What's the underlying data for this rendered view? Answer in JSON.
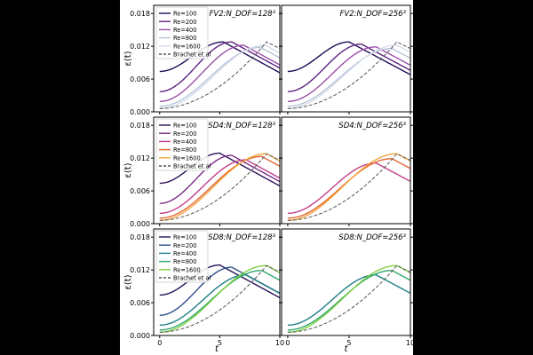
{
  "figure": {
    "xlabel": "t",
    "ylabel": "ε(t)",
    "xticks": [
      0,
      5,
      10
    ],
    "yticks": [
      "0.000",
      "0.006",
      "0.012",
      "0.018"
    ]
  },
  "chart_data": [
    {
      "type": "line",
      "title": "FV2:N_DOF=128³",
      "scheme": "FV2",
      "resolution": "128",
      "xlim": [
        -0.5,
        10
      ],
      "ylim": [
        0,
        0.0195
      ],
      "legend": {
        "placement": "top-left",
        "entries": [
          "Re=100",
          "Re=200",
          "Re=400",
          "Re=800",
          "Re=1600",
          "Brachet et al"
        ]
      },
      "series": [
        {
          "name": "Re=100",
          "color": "#1f0a57",
          "peak_t": 5.3,
          "peak": 0.0128,
          "start": 0.0074
        },
        {
          "name": "Re=200",
          "color": "#5b2380",
          "peak_t": 6.0,
          "peak": 0.0128,
          "start": 0.0037
        },
        {
          "name": "Re=400",
          "color": "#9b4fa8",
          "peak_t": 7.0,
          "peak": 0.0122,
          "start": 0.0019
        },
        {
          "name": "Re=800",
          "color": "#b7c3d8",
          "peak_t": 8.4,
          "peak": 0.0118,
          "start": 0.001
        },
        {
          "name": "Re=1600",
          "color": "#d6deea",
          "peak_t": 8.8,
          "peak": 0.0122,
          "start": 0.0006
        },
        {
          "name": "Brachet et al",
          "color": "#555555",
          "dashed": true
        }
      ]
    },
    {
      "type": "line",
      "title": "FV2:N_DOF=256³",
      "scheme": "FV2",
      "resolution": "256",
      "xlim": [
        -0.5,
        10
      ],
      "ylim": [
        0,
        0.0195
      ],
      "series": [
        {
          "name": "Re=100",
          "color": "#1f0a57",
          "peak_t": 5.0,
          "peak": 0.0128,
          "start": 0.0074
        },
        {
          "name": "Re=200",
          "color": "#5b2380",
          "peak_t": 6.0,
          "peak": 0.0124,
          "start": 0.0037
        },
        {
          "name": "Re=400",
          "color": "#9b4fa8",
          "peak_t": 7.2,
          "peak": 0.0119,
          "start": 0.0019
        },
        {
          "name": "Re=800",
          "color": "#b7c3d8",
          "peak_t": 8.5,
          "peak": 0.0116,
          "start": 0.001
        },
        {
          "name": "Re=1600",
          "color": "#d6deea",
          "peak_t": 8.9,
          "peak": 0.0122,
          "start": 0.0006
        },
        {
          "name": "Brachet et al",
          "color": "#555555",
          "dashed": true
        }
      ]
    },
    {
      "type": "line",
      "title": "SD4:N_DOF=128³",
      "scheme": "SD4",
      "resolution": "128",
      "xlim": [
        -0.5,
        10
      ],
      "ylim": [
        0,
        0.0195
      ],
      "legend": {
        "placement": "top-left",
        "entries": [
          "Re=100",
          "Re=200",
          "Re=400",
          "Re=800",
          "Re=1600",
          "Brachet et al"
        ]
      },
      "series": [
        {
          "name": "Re=100",
          "color": "#2d1159",
          "peak_t": 5.0,
          "peak": 0.0129,
          "start": 0.0074
        },
        {
          "name": "Re=200",
          "color": "#7a2a85",
          "peak_t": 6.0,
          "peak": 0.0125,
          "start": 0.0037
        },
        {
          "name": "Re=400",
          "color": "#c23f8a",
          "peak_t": 7.2,
          "peak": 0.0117,
          "start": 0.0019
        },
        {
          "name": "Re=800",
          "color": "#e4652f",
          "peak_t": 8.5,
          "peak": 0.0123,
          "start": 0.001
        },
        {
          "name": "Re=1600",
          "color": "#f4a640",
          "peak_t": 8.9,
          "peak": 0.0128,
          "start": 0.0006
        },
        {
          "name": "Brachet et al",
          "color": "#555555",
          "dashed": true
        }
      ]
    },
    {
      "type": "line",
      "title": "SD4:N_DOF=256³",
      "scheme": "SD4",
      "resolution": "256",
      "xlim": [
        -0.5,
        10
      ],
      "ylim": [
        0,
        0.0195
      ],
      "series": [
        {
          "name": "Re=400",
          "color": "#c23f8a",
          "peak_t": 7.2,
          "peak": 0.0111,
          "start": 0.0019
        },
        {
          "name": "Re=800",
          "color": "#e4652f",
          "peak_t": 8.5,
          "peak": 0.0119,
          "start": 0.001
        },
        {
          "name": "Re=1600",
          "color": "#f4a640",
          "peak_t": 8.9,
          "peak": 0.0128,
          "start": 0.0006
        },
        {
          "name": "Brachet et al",
          "color": "#555555",
          "dashed": true
        }
      ]
    },
    {
      "type": "line",
      "title": "SD8:N_DOF=128³",
      "scheme": "SD8",
      "resolution": "128",
      "xlim": [
        -0.5,
        10
      ],
      "ylim": [
        0,
        0.0195
      ],
      "legend": {
        "placement": "top-left",
        "entries": [
          "Re=100",
          "Re=200",
          "Re=400",
          "Re=800",
          "Re=1600",
          "Brachet et al"
        ]
      },
      "series": [
        {
          "name": "Re=100",
          "color": "#241257",
          "peak_t": 5.0,
          "peak": 0.0129,
          "start": 0.0074
        },
        {
          "name": "Re=200",
          "color": "#2c4f8c",
          "peak_t": 6.0,
          "peak": 0.0125,
          "start": 0.0037
        },
        {
          "name": "Re=400",
          "color": "#1f7d85",
          "peak_t": 7.2,
          "peak": 0.0111,
          "start": 0.0019
        },
        {
          "name": "Re=800",
          "color": "#2ea86b",
          "peak_t": 8.5,
          "peak": 0.0119,
          "start": 0.001
        },
        {
          "name": "Re=1600",
          "color": "#7ed040",
          "peak_t": 8.9,
          "peak": 0.0128,
          "start": 0.0006
        },
        {
          "name": "Brachet et al",
          "color": "#555555",
          "dashed": true
        }
      ]
    },
    {
      "type": "line",
      "title": "SD8:N_DOF=256³",
      "scheme": "SD8",
      "resolution": "256",
      "xlim": [
        -0.5,
        10
      ],
      "ylim": [
        0,
        0.0195
      ],
      "series": [
        {
          "name": "Re=400",
          "color": "#1f7d85",
          "peak_t": 7.2,
          "peak": 0.0111,
          "start": 0.0019
        },
        {
          "name": "Re=800",
          "color": "#2ea86b",
          "peak_t": 8.5,
          "peak": 0.0119,
          "start": 0.001
        },
        {
          "name": "Re=1600",
          "color": "#7ed040",
          "peak_t": 8.9,
          "peak": 0.0128,
          "start": 0.0006
        },
        {
          "name": "Brachet et al",
          "color": "#555555",
          "dashed": true
        }
      ]
    }
  ]
}
